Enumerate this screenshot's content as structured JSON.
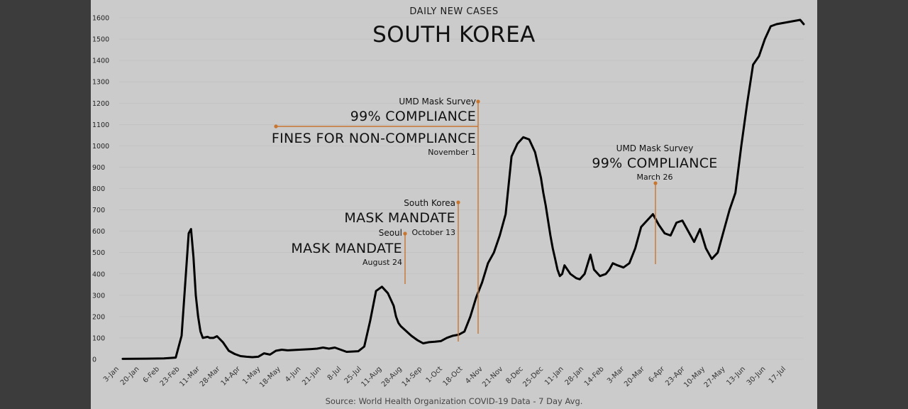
{
  "chart_data": {
    "type": "line",
    "subtitle": "DAILY NEW CASES",
    "title": "SOUTH KOREA",
    "source": "Source: World Health Organization COVID-19 Data - 7 Day Avg.",
    "ylim": [
      0,
      1600
    ],
    "y_ticks": [
      0,
      100,
      200,
      300,
      400,
      500,
      600,
      700,
      800,
      900,
      1000,
      1100,
      1200,
      1300,
      1400,
      1500,
      1600
    ],
    "x_tick_labels": [
      "3-Jan",
      "20-Jan",
      "6-Feb",
      "23-Feb",
      "11-Mar",
      "28-Mar",
      "14-Apr",
      "1-May",
      "18-May",
      "4-Jun",
      "21-Jun",
      "8-Jul",
      "25-Jul",
      "11-Aug",
      "28-Aug",
      "14-Sep",
      "1-Oct",
      "18-Oct",
      "4-Nov",
      "21-Nov",
      "8-Dec",
      "25-Dec",
      "11-Jan",
      "28-Jan",
      "14-Feb",
      "3-Mar",
      "20-Mar",
      "6-Apr",
      "23-Apr",
      "10-May",
      "27-May",
      "13-Jun",
      "30-Jun",
      "17-Jul"
    ],
    "x_range_days": [
      0,
      578
    ],
    "line_color": "#000000",
    "annotation_color": "#c8752f",
    "series": [
      {
        "days": [
          0,
          20,
          35,
          45,
          50,
          53,
          56,
          58,
          60,
          62,
          64,
          66,
          68,
          72,
          74,
          77,
          80,
          85,
          90,
          95,
          100,
          105,
          110,
          115,
          120,
          125,
          130,
          135,
          140,
          150,
          160,
          165,
          170,
          175,
          180,
          190,
          200,
          205,
          210,
          215,
          220,
          225,
          230,
          232,
          234,
          236,
          238,
          240,
          242,
          245,
          250,
          255,
          260,
          265,
          270,
          275,
          280,
          285,
          290,
          295,
          300,
          305,
          310,
          315,
          320,
          325,
          330,
          335,
          340,
          345,
          350,
          355,
          357,
          359,
          361,
          363,
          365,
          367,
          369,
          371,
          373,
          375,
          380,
          385,
          388,
          392,
          397,
          400,
          405,
          410,
          413,
          416,
          420,
          425,
          430,
          435,
          440,
          445,
          450,
          455,
          460,
          465,
          470,
          475,
          480,
          485,
          490,
          495,
          500,
          505,
          510,
          515,
          520,
          525,
          530,
          535,
          540,
          545,
          550,
          555,
          560,
          565,
          570,
          575,
          578
        ],
        "values": [
          2,
          3,
          4,
          8,
          110,
          350,
          590,
          610,
          480,
          300,
          200,
          130,
          100,
          105,
          100,
          100,
          108,
          80,
          40,
          25,
          15,
          12,
          10,
          12,
          28,
          22,
          40,
          45,
          42,
          45,
          48,
          50,
          55,
          50,
          55,
          35,
          38,
          60,
          180,
          320,
          340,
          310,
          250,
          200,
          170,
          155,
          145,
          135,
          125,
          110,
          90,
          75,
          80,
          82,
          85,
          100,
          110,
          115,
          130,
          200,
          290,
          360,
          450,
          500,
          580,
          680,
          950,
          1010,
          1040,
          1030,
          970,
          850,
          780,
          720,
          650,
          580,
          520,
          470,
          420,
          390,
          400,
          440,
          400,
          380,
          375,
          400,
          490,
          420,
          390,
          400,
          420,
          450,
          440,
          430,
          450,
          520,
          620,
          650,
          680,
          630,
          590,
          580,
          640,
          650,
          600,
          550,
          610,
          520,
          470,
          500,
          600,
          700,
          780,
          1000,
          1200,
          1380,
          1420,
          1500,
          1560,
          1570,
          1575,
          1580,
          1585,
          1590,
          1570
        ]
      }
    ],
    "annotations": [
      {
        "small": "UMD Mask Survey",
        "big": "99% COMPLIANCE",
        "date": ""
      },
      {
        "small": "",
        "big": "FINES FOR NON-COMPLIANCE",
        "date": "November 1"
      },
      {
        "small": "South Korea",
        "big": "MASK MANDATE",
        "date": "October 13"
      },
      {
        "small": "Seoul",
        "big": "MASK MANDATE",
        "date": "August 24"
      },
      {
        "small": "UMD Mask Survey",
        "big": "99% COMPLIANCE",
        "date": "March 26"
      }
    ]
  }
}
